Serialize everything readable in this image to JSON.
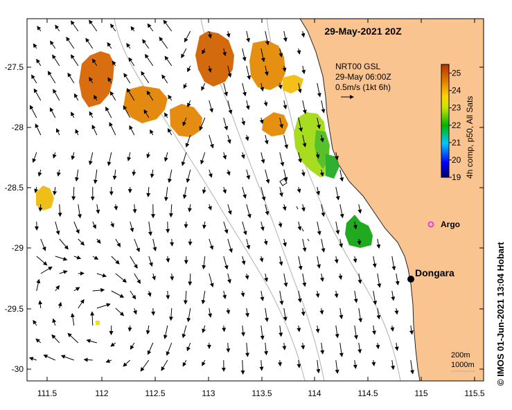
{
  "title": "29-May-2021 20Z",
  "axes": {
    "lon_ticks": [
      "111.5",
      "112",
      "112.5",
      "113",
      "113.5",
      "114",
      "114.5",
      "115",
      "115.5"
    ],
    "lat_ticks": [
      "-27.5",
      "-28",
      "-28.5",
      "-29",
      "-29.5",
      "-30"
    ]
  },
  "current_legend": {
    "line1": "NRT00 GSL",
    "line2": "29-May 06:00Z",
    "line3": "0.5m/s (1kt 6h)"
  },
  "colorbar": {
    "label": "4h comp, p50, All Sats",
    "ticks": [
      "25",
      "24",
      "23",
      "22",
      "21",
      "20",
      "19"
    ],
    "range": [
      19,
      25.5
    ]
  },
  "places": {
    "argo": "Argo",
    "dongara": "Dongara"
  },
  "depth_key": {
    "line1": "200m",
    "line2": "1000m"
  },
  "credit": "© IMOS 01-Jun-2021 13:04 Hobart",
  "colors": {
    "land": "#f9c48f",
    "argo": "#e040e0",
    "isobath": "#b0b0b0"
  }
}
